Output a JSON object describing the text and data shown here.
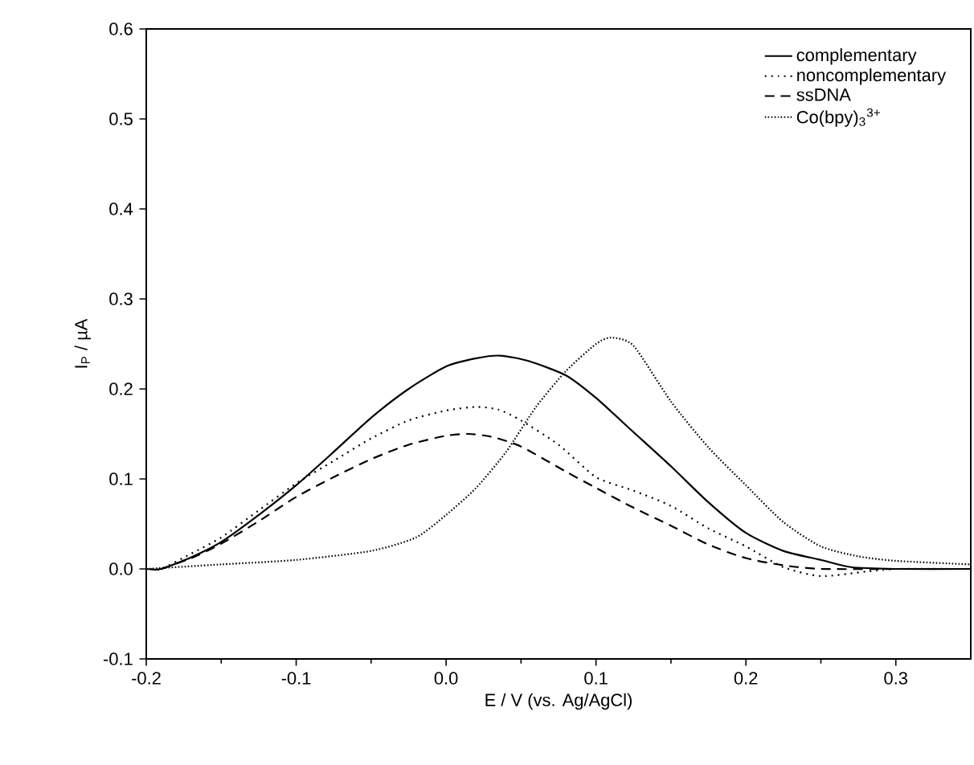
{
  "chart_data": {
    "type": "line",
    "xlabel": "E / V (vs. Ag/AgCl)",
    "ylabel": "I$_{P}$ / µA",
    "xlim": [
      -0.2,
      0.35
    ],
    "ylim": [
      -0.1,
      0.6
    ],
    "xticks": [
      {
        "value": -0.2,
        "label": "-0.2"
      },
      {
        "value": -0.1,
        "label": "-0.1"
      },
      {
        "value": 0,
        "label": "0.0"
      },
      {
        "value": 0.1,
        "label": "0.1"
      },
      {
        "value": 0.2,
        "label": "0.2"
      },
      {
        "value": 0.3,
        "label": "0.3"
      }
    ],
    "yticks": [
      {
        "value": -0.1,
        "label": "-0.1"
      },
      {
        "value": 0,
        "label": "0.0"
      },
      {
        "value": 0.1,
        "label": "0.1"
      },
      {
        "value": 0.2,
        "label": "0.2"
      },
      {
        "value": 0.3,
        "label": "0.3"
      },
      {
        "value": 0.4,
        "label": "0.4"
      },
      {
        "value": 0.5,
        "label": "0.5"
      },
      {
        "value": 0.6,
        "label": "0.6"
      }
    ],
    "legend": "top right",
    "grid": false,
    "marker": "none",
    "series": [
      {
        "name": "complementary",
        "color": "#000000",
        "line_style": "solid",
        "x": [
          -0.2,
          -0.19,
          -0.17,
          -0.15,
          -0.125,
          -0.1,
          -0.075,
          -0.05,
          -0.025,
          0.0,
          0.02,
          0.036,
          0.055,
          0.08,
          0.1,
          0.125,
          0.15,
          0.175,
          0.2,
          0.225,
          0.25,
          0.27,
          0.3,
          0.35
        ],
        "values": [
          0,
          0,
          0.013,
          0.03,
          0.06,
          0.093,
          0.13,
          0.168,
          0.2,
          0.225,
          0.234,
          0.237,
          0.231,
          0.215,
          0.19,
          0.152,
          0.114,
          0.074,
          0.04,
          0.02,
          0.01,
          0.002,
          0,
          0
        ]
      },
      {
        "name": "noncomplementary",
        "color": "#000000",
        "line_style": "dotted",
        "x": [
          -0.197,
          -0.19,
          -0.17,
          -0.15,
          -0.125,
          -0.1,
          -0.075,
          -0.05,
          -0.025,
          0.0,
          0.02,
          0.035,
          0.05,
          0.075,
          0.1,
          0.125,
          0.15,
          0.175,
          0.2,
          0.225,
          0.25,
          0.28,
          0.3,
          0.34
        ],
        "values": [
          0,
          0,
          0.017,
          0.035,
          0.065,
          0.095,
          0.12,
          0.145,
          0.165,
          0.176,
          0.18,
          0.177,
          0.165,
          0.138,
          0.102,
          0.087,
          0.07,
          0.045,
          0.025,
          0.002,
          -0.008,
          -0.003,
          0,
          0
        ]
      },
      {
        "name": "ssDNA",
        "color": "#000000",
        "line_style": "dashed",
        "x": [
          -0.19,
          -0.17,
          -0.15,
          -0.125,
          -0.1,
          -0.075,
          -0.05,
          -0.025,
          0.0,
          0.015,
          0.03,
          0.05,
          0.08,
          0.1,
          0.125,
          0.15,
          0.175,
          0.2,
          0.225,
          0.25,
          0.3
        ],
        "values": [
          0,
          0.012,
          0.028,
          0.053,
          0.08,
          0.102,
          0.122,
          0.138,
          0.148,
          0.15,
          0.147,
          0.136,
          0.108,
          0.09,
          0.068,
          0.048,
          0.027,
          0.012,
          0.004,
          0,
          0
        ]
      },
      {
        "name": "Co(bpy)$_{3}$$^{3+}$",
        "color": "#000000",
        "line_style": "dotted",
        "x": [
          -0.2,
          -0.15,
          -0.1,
          -0.05,
          -0.02,
          0.0,
          0.02,
          0.04,
          0.06,
          0.08,
          0.1,
          0.11,
          0.125,
          0.15,
          0.175,
          0.2,
          0.225,
          0.25,
          0.275,
          0.3,
          0.35
        ],
        "values": [
          0,
          0.005,
          0.01,
          0.02,
          0.035,
          0.06,
          0.09,
          0.13,
          0.18,
          0.22,
          0.25,
          0.257,
          0.248,
          0.186,
          0.135,
          0.093,
          0.052,
          0.025,
          0.014,
          0.009,
          0.005
        ]
      }
    ]
  }
}
